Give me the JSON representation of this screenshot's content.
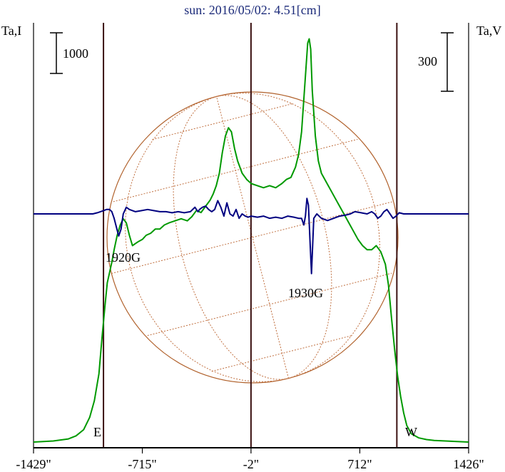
{
  "chart_data": {
    "type": "line",
    "title": "sun: 2016/05/02: 4.51[cm]",
    "ylabel_left": "Ta,I",
    "ylabel_right": "Ta,V",
    "scale_left": "1000",
    "scale_right": "300",
    "x_ticks": [
      {
        "value": -1429,
        "label": "-1429\""
      },
      {
        "value": -715,
        "label": "-715\""
      },
      {
        "value": -2,
        "label": "-2\""
      },
      {
        "value": 712,
        "label": "712\""
      },
      {
        "value": 1426,
        "label": "1426\""
      }
    ],
    "xlim": [
      -1429,
      1426
    ],
    "limb_markers": [
      {
        "value": -970,
        "label": "E"
      },
      {
        "value": 955,
        "label": "W"
      }
    ],
    "annotations": [
      {
        "label": "1920G",
        "x": -845,
        "y_frac": 0.185
      },
      {
        "label": "1930G",
        "x": 385,
        "y_frac": 0.36
      }
    ],
    "series": [
      {
        "color": "#009900",
        "x": [
          -1429,
          -1300,
          -1200,
          -1150,
          -1100,
          -1060,
          -1030,
          -1000,
          -980,
          -960,
          -945,
          -930,
          -915,
          -900,
          -880,
          -860,
          -840,
          -820,
          -800,
          -780,
          -760,
          -740,
          -715,
          -690,
          -660,
          -630,
          -600,
          -570,
          -540,
          -500,
          -460,
          -420,
          -390,
          -360,
          -330,
          -300,
          -270,
          -250,
          -230,
          -210,
          -190,
          -170,
          -150,
          -130,
          -110,
          -90,
          -60,
          -30,
          0,
          40,
          80,
          120,
          160,
          200,
          230,
          260,
          290,
          310,
          330,
          345,
          360,
          370,
          380,
          390,
          400,
          420,
          440,
          460,
          490,
          520,
          550,
          580,
          610,
          640,
          670,
          700,
          730,
          760,
          790,
          820,
          850,
          880,
          900,
          920,
          940,
          960,
          980,
          1000,
          1020,
          1050,
          1100,
          1150,
          1200,
          1300,
          1426
        ],
        "y": [
          0.0,
          0.005,
          0.015,
          0.03,
          0.06,
          0.12,
          0.2,
          0.33,
          0.5,
          0.66,
          0.77,
          0.82,
          0.87,
          0.93,
          1.0,
          1.05,
          1.08,
          1.06,
          1.0,
          0.95,
          0.96,
          0.97,
          0.98,
          1.0,
          1.01,
          1.03,
          1.03,
          1.05,
          1.06,
          1.07,
          1.08,
          1.07,
          1.09,
          1.12,
          1.11,
          1.14,
          1.17,
          1.2,
          1.24,
          1.3,
          1.4,
          1.48,
          1.52,
          1.5,
          1.42,
          1.36,
          1.3,
          1.27,
          1.25,
          1.24,
          1.23,
          1.24,
          1.23,
          1.25,
          1.27,
          1.28,
          1.33,
          1.39,
          1.5,
          1.66,
          1.82,
          1.93,
          1.95,
          1.9,
          1.7,
          1.48,
          1.36,
          1.3,
          1.26,
          1.22,
          1.18,
          1.14,
          1.1,
          1.06,
          1.02,
          0.98,
          0.95,
          0.93,
          0.93,
          0.95,
          0.92,
          0.86,
          0.76,
          0.6,
          0.45,
          0.32,
          0.22,
          0.14,
          0.08,
          0.04,
          0.02,
          0.012,
          0.008,
          0.004,
          0.0
        ]
      },
      {
        "color": "#000080",
        "x": [
          -1429,
          -1100,
          -1040,
          -1010,
          -990,
          -970,
          -950,
          -930,
          -915,
          -900,
          -885,
          -870,
          -855,
          -840,
          -820,
          -800,
          -760,
          -720,
          -680,
          -640,
          -600,
          -560,
          -520,
          -480,
          -440,
          -400,
          -370,
          -350,
          -340,
          -320,
          -300,
          -280,
          -260,
          -240,
          -220,
          -200,
          -180,
          -160,
          -140,
          -120,
          -100,
          -80,
          -60,
          -40,
          -20,
          0,
          40,
          80,
          120,
          160,
          200,
          240,
          280,
          310,
          330,
          345,
          355,
          365,
          375,
          385,
          395,
          410,
          430,
          460,
          500,
          540,
          580,
          620,
          650,
          680,
          720,
          760,
          790,
          810,
          830,
          850,
          870,
          890,
          910,
          930,
          950,
          970,
          1000,
          1100,
          1426
        ],
        "y": [
          0,
          0,
          0,
          0.005,
          0.01,
          0.015,
          0.02,
          0.02,
          0.01,
          -0.02,
          -0.06,
          -0.1,
          -0.07,
          0.0,
          0.03,
          0.02,
          0.01,
          0.015,
          0.02,
          0.015,
          0.01,
          0.01,
          0.005,
          0.01,
          0.005,
          0.01,
          0.03,
          0.01,
          0.02,
          0.03,
          0.035,
          0.02,
          0.01,
          0.02,
          0.06,
          0.03,
          -0.01,
          0.05,
          0.0,
          -0.01,
          0.02,
          -0.02,
          0.0,
          -0.01,
          -0.015,
          -0.01,
          -0.015,
          -0.01,
          -0.02,
          -0.015,
          -0.02,
          -0.01,
          -0.015,
          -0.02,
          -0.02,
          -0.05,
          -0.01,
          0.07,
          0.04,
          -0.12,
          -0.27,
          -0.02,
          0.0,
          -0.02,
          -0.03,
          -0.02,
          -0.01,
          -0.005,
          0.0,
          0.01,
          0.005,
          0.0,
          0.01,
          0.0,
          -0.02,
          -0.01,
          0.01,
          0.02,
          0.0,
          -0.02,
          -0.01,
          0.005,
          0,
          0,
          0
        ]
      }
    ]
  }
}
